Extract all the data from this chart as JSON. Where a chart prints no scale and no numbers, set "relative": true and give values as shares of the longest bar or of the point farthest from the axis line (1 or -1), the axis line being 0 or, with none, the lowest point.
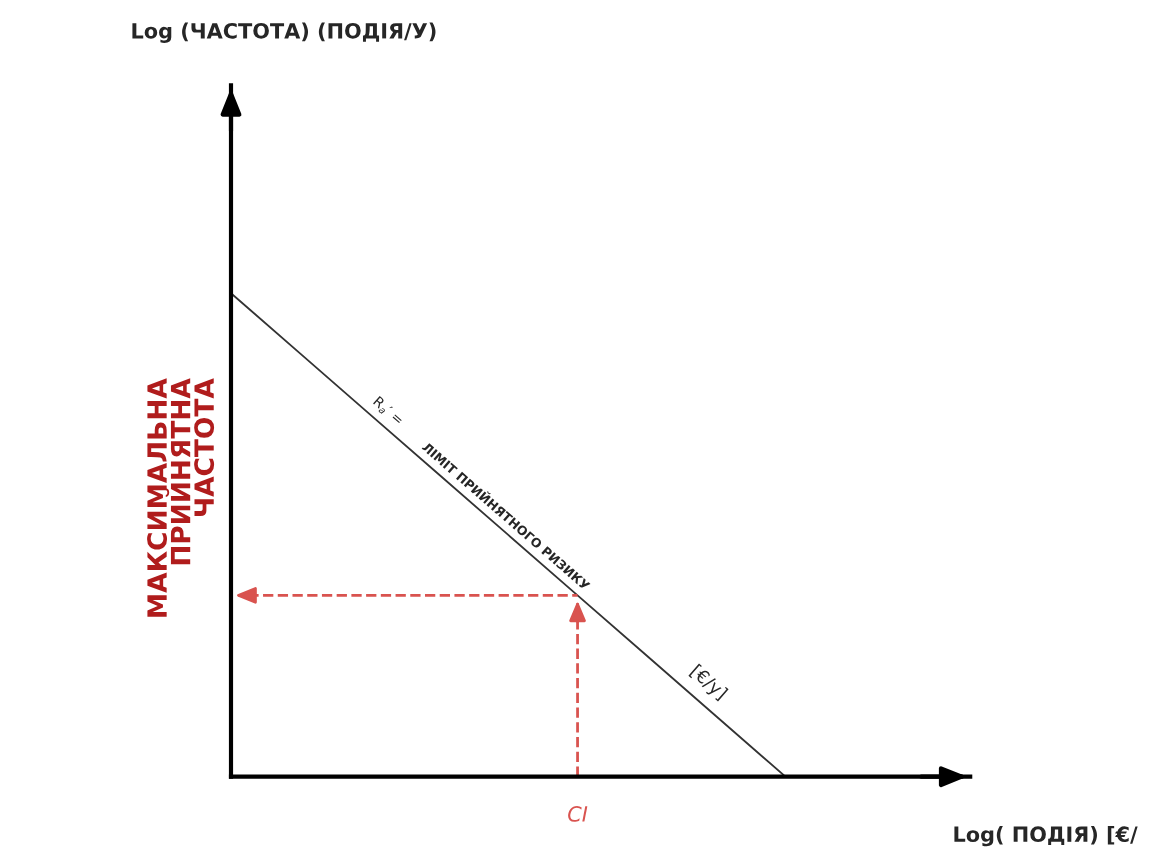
{
  "chart_data": {
    "type": "line",
    "relative": true,
    "xlabel": "Log( ПОДІЯ) [€/",
    "categories": [
      null,
      null,
      null,
      null,
      null,
      null,
      null,
      null,
      null,
      null
    ],
    "series": [
      {
        "color": "#333333",
        "values": [
          1,
          0.875,
          0.75,
          0.625,
          0.5,
          0.375,
          0.25,
          0.125,
          0,
          null
        ]
      }
    ],
    "ref_lines": [
      {
        "axis": "y",
        "value": 0.375,
        "label": "МАКСИМАЛЬНА\nПРИЙНЯТНА\nЧАСТОТА",
        "color": "#d9534f",
        "line_style": "dashed"
      }
    ],
    "annotations": [
      "Log (ЧАСТОТА) (ПОДІЯ/У)",
      "R$_{a}$′ =",
      "ЛІМІТ ПРИЙНЯТНОГО РИЗИКУ",
      "[€/y]",
      "CI"
    ],
    "grid": false,
    "legend": false,
    "marker": "none",
    "line_style": "solid"
  }
}
